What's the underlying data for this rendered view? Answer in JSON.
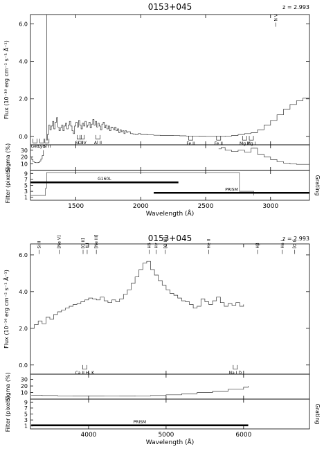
{
  "chart_data": [
    {
      "type": "line",
      "title": "0153+045",
      "redshift": "z = 2.993",
      "xlabel": "Wavelength (Å)",
      "xlim": [
        1150,
        3300
      ],
      "xticks": [
        1500,
        2000,
        2500,
        3000
      ],
      "flux": {
        "ylabel": "Flux (10⁻¹⁶ erg cm⁻² s⁻¹ Å⁻¹)",
        "ylim": [
          -0.45,
          6.5
        ],
        "yticks": [
          "0.0",
          "2.0",
          "4.0",
          "6.0"
        ],
        "x": [
          1250,
          1265,
          1275,
          1280,
          1290,
          1300,
          1310,
          1320,
          1330,
          1340,
          1350,
          1360,
          1370,
          1380,
          1390,
          1400,
          1410,
          1420,
          1430,
          1440,
          1450,
          1460,
          1470,
          1480,
          1490,
          1500,
          1510,
          1520,
          1530,
          1540,
          1550,
          1560,
          1570,
          1580,
          1590,
          1600,
          1610,
          1620,
          1630,
          1640,
          1650,
          1660,
          1670,
          1680,
          1690,
          1700,
          1710,
          1720,
          1730,
          1740,
          1750,
          1760,
          1770,
          1780,
          1790,
          1800,
          1810,
          1820,
          1830,
          1840,
          1850,
          1860,
          1870,
          1880,
          1890,
          1900,
          1920,
          1940,
          1960,
          1980,
          2000,
          2050,
          2100,
          2150,
          2200,
          2250,
          2300,
          2350,
          2400,
          2450,
          2500,
          2550,
          2600,
          2650,
          2700,
          2750,
          2800,
          2850,
          2900,
          2950,
          3000,
          3050,
          3100,
          3150,
          3200,
          3250,
          3300
        ],
        "y": [
          6.5,
          6.5,
          -0.2,
          0.1,
          0.6,
          0.35,
          0.55,
          0.8,
          0.4,
          0.75,
          1.0,
          0.5,
          0.3,
          0.45,
          0.6,
          0.3,
          0.55,
          0.7,
          0.4,
          0.6,
          0.8,
          0.55,
          0.3,
          0.15,
          0.55,
          0.75,
          0.5,
          0.85,
          0.6,
          0.4,
          0.7,
          0.55,
          0.8,
          0.5,
          0.6,
          0.75,
          0.45,
          0.65,
          0.9,
          0.6,
          0.8,
          0.5,
          0.7,
          0.55,
          0.35,
          0.65,
          0.75,
          0.45,
          0.6,
          0.4,
          0.55,
          0.3,
          0.5,
          0.45,
          0.35,
          0.5,
          0.3,
          0.4,
          0.2,
          0.35,
          0.25,
          0.3,
          0.15,
          0.3,
          0.22,
          0.25,
          0.15,
          0.12,
          0.1,
          0.15,
          0.1,
          0.08,
          0.06,
          0.05,
          0.05,
          0.04,
          0.03,
          0.02,
          0.02,
          0.01,
          0.0,
          0.0,
          0.0,
          0.02,
          0.05,
          0.1,
          0.15,
          0.2,
          0.35,
          0.6,
          0.85,
          1.15,
          1.45,
          1.7,
          1.9,
          2.05,
          2.15
        ]
      },
      "sigma": {
        "ylabel": "Sigma (%)",
        "ylim": [
          0,
          38
        ],
        "yticks": [
          "10",
          "20",
          "30"
        ],
        "segments": [
          {
            "x": [
              1150,
              1160,
              1170,
              1180,
              1190,
              1200,
              1210,
              1220,
              1230,
              1240,
              1250
            ],
            "y": [
              20,
              16,
              13,
              12,
              11.5,
              11.5,
              12,
              14,
              17,
              22,
              30
            ]
          },
          {
            "x": [
              2600,
              2620,
              2650,
              2700,
              2750,
              2800,
              2850,
              2900,
              2950,
              3000,
              3050,
              3100,
              3150,
              3200,
              3250,
              3300
            ],
            "y": [
              32,
              34,
              30,
              28,
              30,
              27,
              33,
              24,
              20,
              16,
              13,
              11,
              10,
              9,
              9,
              9
            ]
          }
        ]
      },
      "filter": {
        "ylabel": "Filter (pixels)",
        "y2label": "Grating",
        "ylim": [
          0,
          10
        ],
        "yticks": [
          "1",
          "3",
          "5",
          "7",
          "9"
        ],
        "aperture": {
          "x": [
            1150,
            1265,
            1265,
            1275,
            1275,
            2760,
            2760,
            2870,
            2870
          ],
          "y": [
            1.6,
            1.6,
            4,
            4,
            9.3,
            9.3,
            3,
            3,
            1.6
          ]
        },
        "gratings": [
          {
            "name": "G160L",
            "x": [
              1150,
              2290
            ],
            "level": 6
          },
          {
            "name": "PRISM",
            "x": [
              2100,
              3300
            ],
            "level": 2.5
          }
        ]
      },
      "lines": [
        {
          "label": "Geo",
          "x": 1185,
          "y": -0.2,
          "mark": "below"
        },
        {
          "label": "Lyα",
          "x": 1237,
          "y": -0.2,
          "mark": "below"
        },
        {
          "label": "Si II",
          "x": 1277,
          "y": -0.2,
          "mark": "below"
        },
        {
          "label": "Si II",
          "x": 1525,
          "y": 0.0,
          "mark": "below"
        },
        {
          "label": "C IV",
          "x": 1549,
          "y": 0.0,
          "mark": "below"
        },
        {
          "label": "Al II",
          "x": 1670,
          "y": 0.0,
          "mark": "below"
        },
        {
          "label": "Fe II",
          "x": 2385,
          "y": -0.05,
          "mark": "below"
        },
        {
          "label": "Fe II",
          "x": 2600,
          "y": -0.05,
          "mark": "below"
        },
        {
          "label": "Mg II",
          "x": 2800,
          "y": -0.05,
          "mark": "below"
        },
        {
          "label": "Mg I",
          "x": 2852,
          "y": -0.05,
          "mark": "below"
        },
        {
          "label": "N V",
          "x": 3040,
          "y": 5.85,
          "mark": "above"
        }
      ]
    },
    {
      "type": "line",
      "title": "0153+045",
      "redshift": "z = 2.993",
      "xlabel": "Wavelength (Å)",
      "xlim": [
        3250,
        6850
      ],
      "xticks": [
        4000,
        5000,
        6000
      ],
      "flux": {
        "ylabel": "Flux (10⁻¹⁶ erg cm⁻² s⁻¹ Å⁻¹)",
        "ylim": [
          -0.5,
          6.6
        ],
        "yticks": [
          "0.0",
          "2.0",
          "4.0",
          "6.0"
        ],
        "x": [
          3260,
          3300,
          3350,
          3400,
          3450,
          3500,
          3550,
          3600,
          3650,
          3700,
          3750,
          3800,
          3850,
          3900,
          3950,
          4000,
          4050,
          4100,
          4150,
          4200,
          4250,
          4300,
          4350,
          4400,
          4450,
          4500,
          4550,
          4600,
          4650,
          4700,
          4750,
          4800,
          4850,
          4900,
          4950,
          5000,
          5050,
          5100,
          5150,
          5200,
          5250,
          5300,
          5350,
          5400,
          5450,
          5500,
          5550,
          5600,
          5650,
          5700,
          5750,
          5800,
          5850,
          5900,
          5950,
          6000
        ],
        "y": [
          2.0,
          2.2,
          2.4,
          2.25,
          2.6,
          2.5,
          2.75,
          2.9,
          3.0,
          3.1,
          3.2,
          3.3,
          3.35,
          3.45,
          3.55,
          3.65,
          3.6,
          3.55,
          3.7,
          3.5,
          3.4,
          3.55,
          3.45,
          3.6,
          3.85,
          4.1,
          4.45,
          4.8,
          5.2,
          5.55,
          5.65,
          5.2,
          4.9,
          4.6,
          4.35,
          4.1,
          3.9,
          3.8,
          3.65,
          3.5,
          3.45,
          3.3,
          3.1,
          3.2,
          3.6,
          3.45,
          3.3,
          3.5,
          3.7,
          3.4,
          3.2,
          3.35,
          3.25,
          3.4,
          3.2,
          3.3
        ]
      },
      "sigma": {
        "ylabel": "Sigma (%)",
        "ylim": [
          0,
          38
        ],
        "yticks": [
          "10",
          "20",
          "30"
        ],
        "segments": [
          {
            "x": [
              3260,
              3400,
              3600,
              3800,
              4000,
              4200,
              4400,
              4600,
              4800,
              5000,
              5200,
              5400,
              5600,
              5800,
              6000,
              6060
            ],
            "y": [
              6,
              5.5,
              5,
              4.8,
              4.6,
              4.5,
              4.6,
              5,
              5.5,
              6.5,
              8,
              10,
              12,
              15,
              18,
              20
            ]
          }
        ]
      },
      "filter": {
        "ylabel": "Filter (pixels)",
        "y2label": "Grating",
        "ylim": [
          0,
          10
        ],
        "yticks": [
          "1",
          "3",
          "5",
          "7",
          "9"
        ],
        "aperture": null,
        "gratings": [
          {
            "name": "PRISM",
            "x": [
              3260,
              6060
            ],
            "level": 1.2
          }
        ]
      },
      "lines": [
        {
          "label": "Si II",
          "x": 3360,
          "y": 6.05,
          "mark": "above"
        },
        {
          "label": "[Ne V]",
          "x": 3620,
          "y": 6.05,
          "mark": "above"
        },
        {
          "label": "[O II]",
          "x": 3929,
          "y": 6.05,
          "mark": "above"
        },
        {
          "label": "H I",
          "x": 3982,
          "y": 6.05,
          "mark": "above"
        },
        {
          "label": "[Ne III]",
          "x": 4100,
          "y": 6.05,
          "mark": "above"
        },
        {
          "label": "Hδ",
          "x": 4780,
          "y": 6.05,
          "mark": "above"
        },
        {
          "label": "Hγ",
          "x": 4870,
          "y": 6.05,
          "mark": "above"
        },
        {
          "label": "[O III]",
          "x": 4990,
          "y": 6.05,
          "mark": "above"
        },
        {
          "label": "He II",
          "x": 5550,
          "y": 6.05,
          "mark": "above"
        },
        {
          "label": "Hβ",
          "x": 6180,
          "y": 6.05,
          "mark": "above"
        },
        {
          "label": "He I",
          "x": 6500,
          "y": 6.05,
          "mark": "above"
        },
        {
          "label": "[O I]",
          "x": 6660,
          "y": 6.05,
          "mark": "above"
        },
        {
          "label": "Ca II H, K",
          "x": 3950,
          "y": -0.08,
          "mark": "below"
        },
        {
          "label": "Na I D",
          "x": 5893,
          "y": -0.08,
          "mark": "below"
        }
      ]
    }
  ]
}
